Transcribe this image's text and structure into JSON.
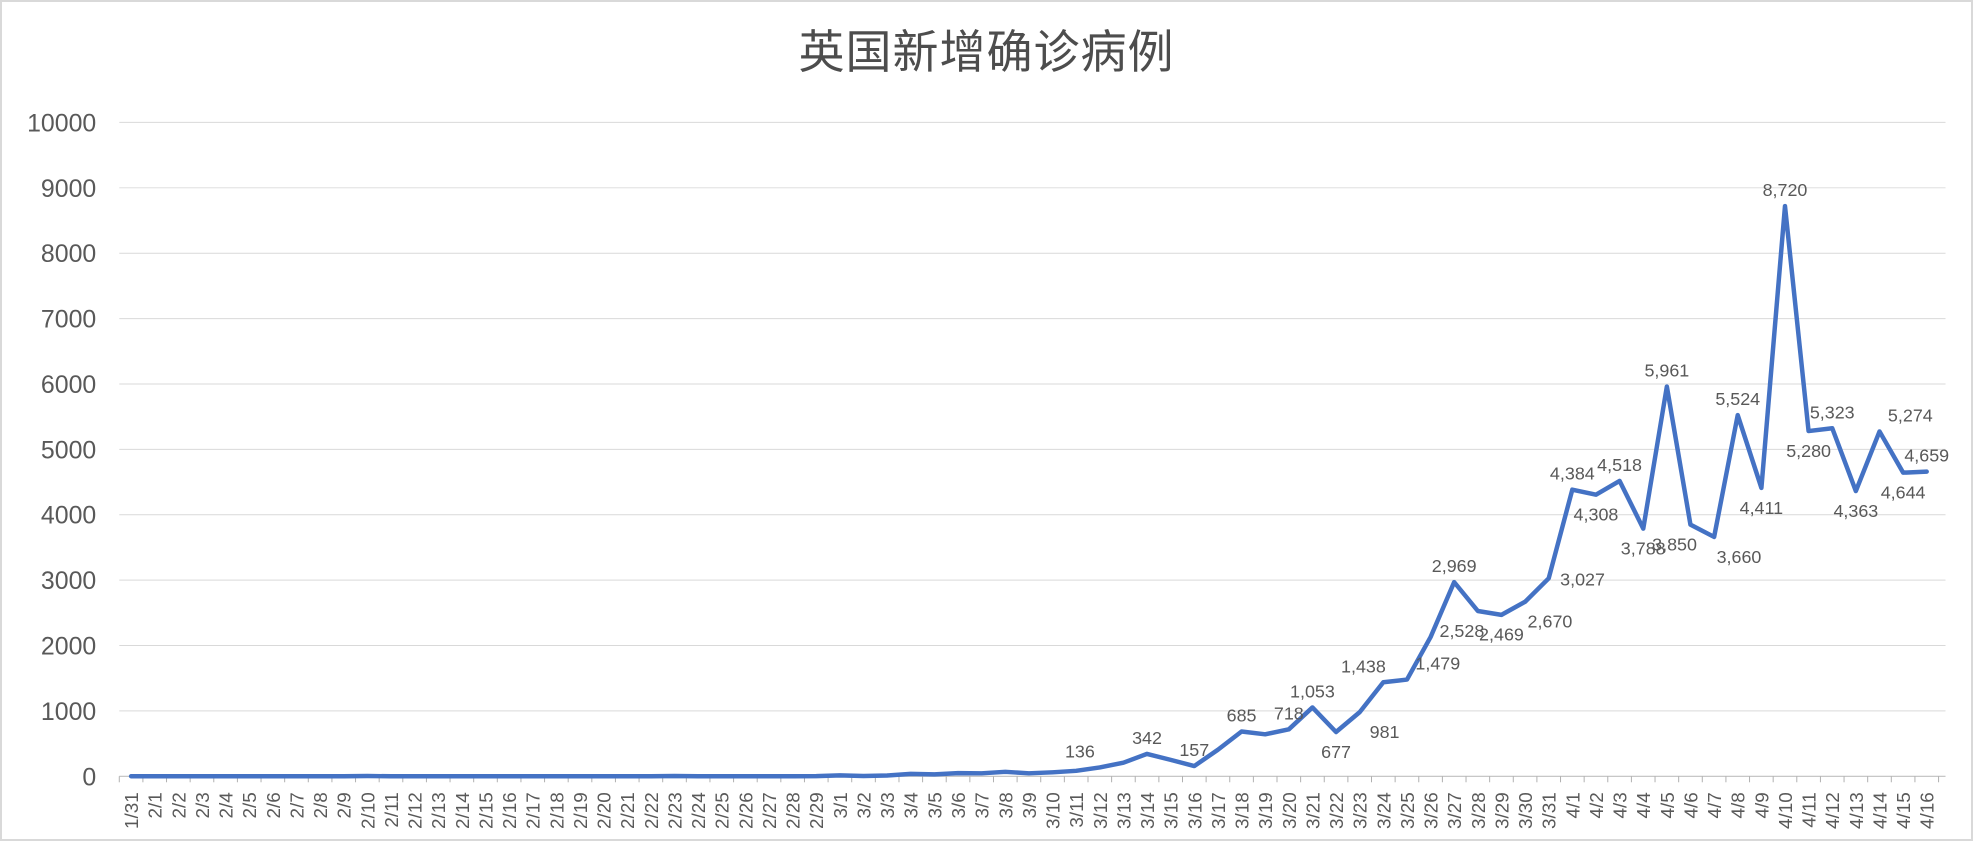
{
  "title": "英国新增确诊病例",
  "colors": {
    "series_line": "#4472C4",
    "gridline": "#D9D9D9",
    "axis": "#BFBFBF",
    "text": "#595959",
    "title_text": "#4D4D4D",
    "background": "#FFFFFF"
  },
  "chart_data": {
    "type": "line",
    "title": "英国新增确诊病例",
    "legend": "none",
    "grid": "horizontal",
    "ylim": [
      0,
      10000
    ],
    "ytick_step": 1000,
    "ytick_labels": [
      "0",
      "1000",
      "2000",
      "3000",
      "4000",
      "5000",
      "6000",
      "7000",
      "8000",
      "9000",
      "10000"
    ],
    "x_categories": [
      "1/31",
      "2/1",
      "2/2",
      "2/3",
      "2/4",
      "2/5",
      "2/6",
      "2/7",
      "2/8",
      "2/9",
      "2/10",
      "2/11",
      "2/12",
      "2/13",
      "2/14",
      "2/15",
      "2/16",
      "2/17",
      "2/18",
      "2/19",
      "2/20",
      "2/21",
      "2/22",
      "2/23",
      "2/24",
      "2/25",
      "2/26",
      "2/27",
      "2/28",
      "2/29",
      "3/1",
      "3/2",
      "3/3",
      "3/4",
      "3/5",
      "3/6",
      "3/7",
      "3/8",
      "3/9",
      "3/10",
      "3/11",
      "3/12",
      "3/13",
      "3/14",
      "3/15",
      "3/16",
      "3/17",
      "3/18",
      "3/19",
      "3/20",
      "3/21",
      "3/22",
      "3/23",
      "3/24",
      "3/25",
      "3/26",
      "3/27",
      "3/28",
      "3/29",
      "3/30",
      "3/31",
      "4/1",
      "4/2",
      "4/3",
      "4/4",
      "4/5",
      "4/6",
      "4/7",
      "4/8",
      "4/9",
      "4/10",
      "4/11",
      "4/12",
      "4/13",
      "4/14",
      "4/15",
      "4/16"
    ],
    "values": [
      2,
      0,
      0,
      0,
      0,
      0,
      1,
      0,
      0,
      1,
      4,
      0,
      1,
      0,
      0,
      0,
      0,
      0,
      0,
      0,
      0,
      0,
      0,
      4,
      0,
      0,
      0,
      2,
      1,
      3,
      13,
      4,
      12,
      36,
      29,
      48,
      45,
      69,
      46,
      61,
      83,
      136,
      208,
      342,
      251,
      157,
      407,
      685,
      643,
      718,
      1053,
      677,
      981,
      1438,
      1479,
      2129,
      2969,
      2528,
      2469,
      2670,
      3027,
      4384,
      4308,
      4518,
      3788,
      5961,
      3850,
      3660,
      5524,
      4411,
      8720,
      5280,
      5323,
      4363,
      5274,
      4644,
      4659
    ],
    "data_labels": [
      {
        "x": "3/12",
        "text": "136",
        "pos": "above-left"
      },
      {
        "x": "3/14",
        "text": "342",
        "pos": "above"
      },
      {
        "x": "3/16",
        "text": "157",
        "pos": "above"
      },
      {
        "x": "3/18",
        "text": "685",
        "pos": "above"
      },
      {
        "x": "3/20",
        "text": "718",
        "pos": "above"
      },
      {
        "x": "3/21",
        "text": "1,053",
        "pos": "above"
      },
      {
        "x": "3/22",
        "text": "677",
        "pos": "below"
      },
      {
        "x": "3/23",
        "text": "981",
        "pos": "below-right"
      },
      {
        "x": "3/24",
        "text": "1,438",
        "pos": "above-left"
      },
      {
        "x": "3/25",
        "text": "1,479",
        "pos": "above-right"
      },
      {
        "x": "3/27",
        "text": "2,969",
        "pos": "above"
      },
      {
        "x": "3/28",
        "text": "2,528",
        "pos": "below-left"
      },
      {
        "x": "3/29",
        "text": "2,469",
        "pos": "below"
      },
      {
        "x": "3/30",
        "text": "2,670",
        "pos": "below-right"
      },
      {
        "x": "3/31",
        "text": "3,027",
        "pos": "right"
      },
      {
        "x": "4/1",
        "text": "4,384",
        "pos": "above"
      },
      {
        "x": "4/2",
        "text": "4,308",
        "pos": "below"
      },
      {
        "x": "4/3",
        "text": "4,518",
        "pos": "above"
      },
      {
        "x": "4/4",
        "text": "3,788",
        "pos": "below"
      },
      {
        "x": "4/5",
        "text": "5,961",
        "pos": "above"
      },
      {
        "x": "4/6",
        "text": "3,850",
        "pos": "below-left"
      },
      {
        "x": "4/7",
        "text": "3,660",
        "pos": "below-right"
      },
      {
        "x": "4/8",
        "text": "5,524",
        "pos": "above"
      },
      {
        "x": "4/9",
        "text": "4,411",
        "pos": "below"
      },
      {
        "x": "4/10",
        "text": "8,720",
        "pos": "above"
      },
      {
        "x": "4/11",
        "text": "5,280",
        "pos": "below"
      },
      {
        "x": "4/12",
        "text": "5,323",
        "pos": "above"
      },
      {
        "x": "4/13",
        "text": "4,363",
        "pos": "below"
      },
      {
        "x": "4/14",
        "text": "5,274",
        "pos": "above-right"
      },
      {
        "x": "4/15",
        "text": "4,644",
        "pos": "below"
      },
      {
        "x": "4/16",
        "text": "4,659",
        "pos": "above"
      }
    ]
  }
}
